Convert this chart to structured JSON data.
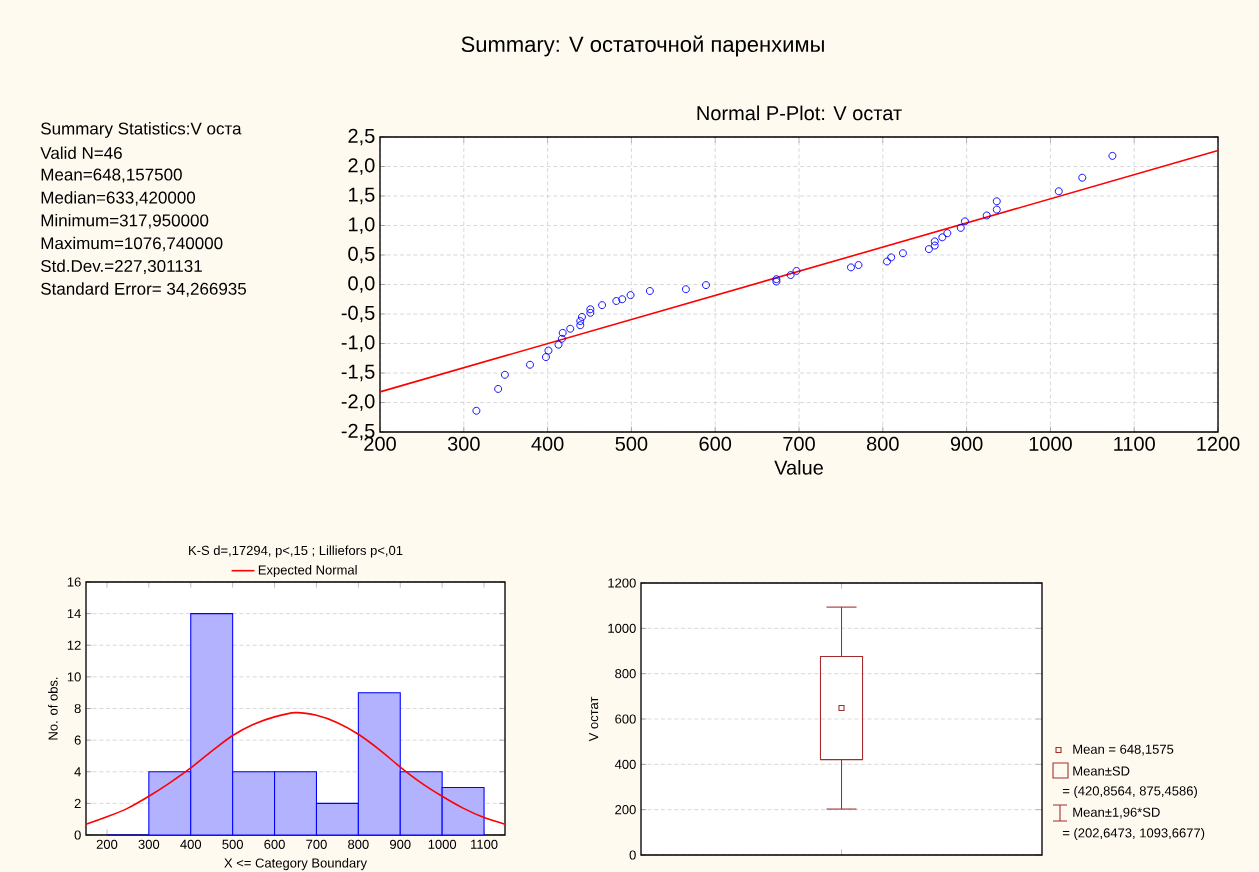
{
  "chart_data": [
    {
      "type": "other",
      "title": "Summary: V остаточной паренхимы",
      "annotations": [
        "Summary Statistics:V оста",
        "Valid N=46",
        "Mean=648,157500",
        "Median=633,420000",
        "Minimum=317,950000",
        "Maximum=1076,740000",
        "Std.Dev.=227,301131",
        "Standard Error= 34,266935"
      ]
    },
    {
      "type": "scatter",
      "title": "Normal P-Plot: V остат",
      "xlabel": "Value",
      "xlim": [
        200,
        1200
      ],
      "xticks": [
        200,
        300,
        400,
        500,
        600,
        700,
        800,
        900,
        1000,
        1100,
        1200
      ],
      "ylim": [
        -2.5,
        2.5
      ],
      "yticks": [
        {
          "value": -2.5,
          "label": "-2,5"
        },
        {
          "value": -2,
          "label": "-2,0"
        },
        {
          "value": -1.5,
          "label": "-1,5"
        },
        {
          "value": -1,
          "label": "-1,0"
        },
        {
          "value": -0.5,
          "label": "-0,5"
        },
        {
          "value": 0,
          "label": "0,0"
        },
        {
          "value": 0.5,
          "label": "0,5"
        },
        {
          "value": 1,
          "label": "1,0"
        },
        {
          "value": 1.5,
          "label": "1,5"
        },
        {
          "value": 2,
          "label": "2,0"
        },
        {
          "value": 2.5,
          "label": "2,5"
        }
      ],
      "grid": true,
      "series": [
        {
          "type": "scatter",
          "color": "#0000ff",
          "marker": "circle",
          "x": [
            315,
            341,
            349,
            379,
            398,
            401,
            413,
            417,
            418,
            427,
            439,
            439,
            441,
            451,
            451,
            465,
            482,
            489,
            499,
            522,
            565,
            589,
            673,
            673,
            690,
            697,
            762,
            771,
            805,
            810,
            824,
            855,
            862,
            862,
            871,
            877,
            893,
            898,
            924,
            936,
            936,
            1010,
            1038,
            1074
          ],
          "values": [
            -2.14,
            -1.77,
            -1.53,
            -1.36,
            -1.23,
            -1.12,
            -1.02,
            -0.92,
            -0.82,
            -0.75,
            -0.69,
            -0.62,
            -0.55,
            -0.48,
            -0.42,
            -0.35,
            -0.28,
            -0.25,
            -0.18,
            -0.11,
            -0.08,
            -0.01,
            0.05,
            0.09,
            0.16,
            0.23,
            0.29,
            0.33,
            0.39,
            0.46,
            0.53,
            0.6,
            0.66,
            0.73,
            0.8,
            0.87,
            0.96,
            1.07,
            1.17,
            1.27,
            1.41,
            1.58,
            1.81,
            2.18
          ]
        },
        {
          "type": "line",
          "color": "#ff0000",
          "marker": "none",
          "x": [
            200,
            1200
          ],
          "values": [
            -1.82,
            2.27
          ]
        }
      ]
    },
    {
      "type": "histogram",
      "title": "K-S d=,17294, p<,15 ; Lilliefors p<,01",
      "xlabel": "X <= Category Boundary",
      "ylabel": "No. of obs.",
      "bins": [
        200,
        300,
        400,
        500,
        600,
        700,
        800,
        900,
        1000,
        1100
      ],
      "values": [
        0,
        4,
        14,
        4,
        4,
        2,
        9,
        4,
        3
      ],
      "color": "#0000ff",
      "xlim": [
        150,
        1150
      ],
      "xticks": [
        200,
        300,
        400,
        500,
        600,
        700,
        800,
        900,
        1000,
        1100
      ],
      "ylim": [
        0,
        16
      ],
      "yticks": [
        0,
        2,
        4,
        6,
        8,
        10,
        12,
        14,
        16
      ],
      "grid": "y",
      "legend": "top",
      "series": [
        {
          "type": "line",
          "name": "Expected Normal",
          "color": "#ff0000",
          "x": [
            150,
            200,
            250,
            300,
            350,
            400,
            450,
            500,
            550,
            600,
            650,
            700,
            750,
            800,
            850,
            900,
            950,
            1000,
            1050,
            1100,
            1150
          ],
          "values": [
            0.68,
            1.15,
            1.7,
            2.45,
            3.3,
            4.24,
            5.3,
            6.29,
            7.0,
            7.47,
            7.74,
            7.57,
            7.1,
            6.37,
            5.4,
            4.3,
            3.3,
            2.45,
            1.7,
            1.1,
            0.68
          ]
        }
      ]
    },
    {
      "type": "box",
      "ylabel": "V остат",
      "categories": [
        null
      ],
      "boxes": [
        {
          "low": 202.6473,
          "q1": 420.8564,
          "q3": 875.4586,
          "high": 1093.6677,
          "mean": 648.1575
        }
      ],
      "color": "#a52a2a",
      "ylim": [
        0,
        1200
      ],
      "yticks": [
        0,
        200,
        400,
        600,
        800,
        1000,
        1200
      ],
      "grid": "y",
      "annotations": [
        "Mean = 648,1575",
        "Mean±SD",
        "= (420,8564, 875,4586)",
        "Mean±1,96*SD",
        "= (202,6473, 1093,6677)"
      ]
    }
  ]
}
